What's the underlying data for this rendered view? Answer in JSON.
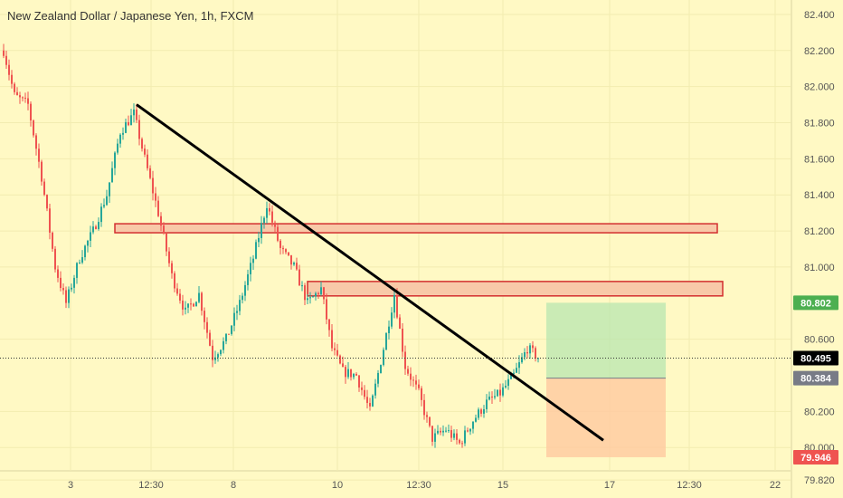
{
  "header": {
    "title": "New Zealand Dollar / Japanese Yen, 1h, FXCM"
  },
  "theme": {
    "background": "#fff9c4",
    "up_color": "#26a69a",
    "down_color": "#ef5350",
    "grid_color": "#f2ecb0",
    "zone_fill": "#f8c9a8",
    "zone_border": "#d32f2f",
    "trendline_color": "#000000",
    "axis_text": "#555555"
  },
  "chart_data": {
    "type": "candlestick",
    "symbol": "NZDJPY",
    "timeframe": "1h",
    "x_tick_labels": [
      "3",
      "12:30",
      "8",
      "10",
      "12:30",
      "15",
      "17",
      "12:30",
      "22"
    ],
    "y_tick_labels": [
      "82.400",
      "82.200",
      "82.000",
      "81.800",
      "81.600",
      "81.400",
      "81.200",
      "81.000",
      "80.600",
      "80.200",
      "80.000",
      "79.820"
    ],
    "y_range": [
      79.72,
      82.48
    ],
    "price_path": [
      {
        "bar": 0,
        "close": 82.2
      },
      {
        "bar": 4,
        "close": 81.95
      },
      {
        "bar": 9,
        "close": 81.9
      },
      {
        "bar": 14,
        "close": 81.5
      },
      {
        "bar": 19,
        "close": 81.0
      },
      {
        "bar": 23,
        "close": 80.8
      },
      {
        "bar": 28,
        "close": 81.05
      },
      {
        "bar": 33,
        "close": 81.2
      },
      {
        "bar": 38,
        "close": 81.4
      },
      {
        "bar": 43,
        "close": 81.75
      },
      {
        "bar": 48,
        "close": 81.85
      },
      {
        "bar": 52,
        "close": 81.6
      },
      {
        "bar": 57,
        "close": 81.3
      },
      {
        "bar": 62,
        "close": 80.95
      },
      {
        "bar": 67,
        "close": 80.75
      },
      {
        "bar": 72,
        "close": 80.85
      },
      {
        "bar": 77,
        "close": 80.5
      },
      {
        "bar": 82,
        "close": 80.6
      },
      {
        "bar": 87,
        "close": 80.8
      },
      {
        "bar": 92,
        "close": 81.05
      },
      {
        "bar": 97,
        "close": 81.35
      },
      {
        "bar": 102,
        "close": 81.1
      },
      {
        "bar": 107,
        "close": 81.0
      },
      {
        "bar": 112,
        "close": 80.8
      },
      {
        "bar": 117,
        "close": 80.88
      },
      {
        "bar": 121,
        "close": 80.55
      },
      {
        "bar": 125,
        "close": 80.42
      },
      {
        "bar": 130,
        "close": 80.4
      },
      {
        "bar": 135,
        "close": 80.2
      },
      {
        "bar": 140,
        "close": 80.55
      },
      {
        "bar": 144,
        "close": 80.85
      },
      {
        "bar": 148,
        "close": 80.45
      },
      {
        "bar": 153,
        "close": 80.3
      },
      {
        "bar": 158,
        "close": 80.05
      },
      {
        "bar": 163,
        "close": 80.1
      },
      {
        "bar": 168,
        "close": 80.02
      },
      {
        "bar": 173,
        "close": 80.15
      },
      {
        "bar": 178,
        "close": 80.25
      },
      {
        "bar": 183,
        "close": 80.3
      },
      {
        "bar": 188,
        "close": 80.4
      },
      {
        "bar": 193,
        "close": 80.55
      },
      {
        "bar": 197,
        "close": 80.5
      }
    ],
    "bar_count": 198,
    "trendline": {
      "from": {
        "bar": 49,
        "price": 81.9
      },
      "to": {
        "bar": 221,
        "price": 80.04
      }
    },
    "zones": [
      {
        "from_bar": 41,
        "to_bar": 263,
        "high": 81.24,
        "low": 81.19
      },
      {
        "from_bar": 112,
        "to_bar": 265,
        "high": 80.92,
        "low": 80.84
      }
    ],
    "position": {
      "from_bar": 200,
      "to_bar": 244,
      "target": 80.802,
      "entry": 80.384,
      "stop": 79.946
    },
    "labels": {
      "current_price": "80.495",
      "target": "80.802",
      "entry": "80.384",
      "stop": "79.946"
    },
    "label_colors": {
      "current_price": "#000000",
      "target": "#4caf50",
      "entry": "#787b86",
      "stop": "#ef5350"
    }
  }
}
